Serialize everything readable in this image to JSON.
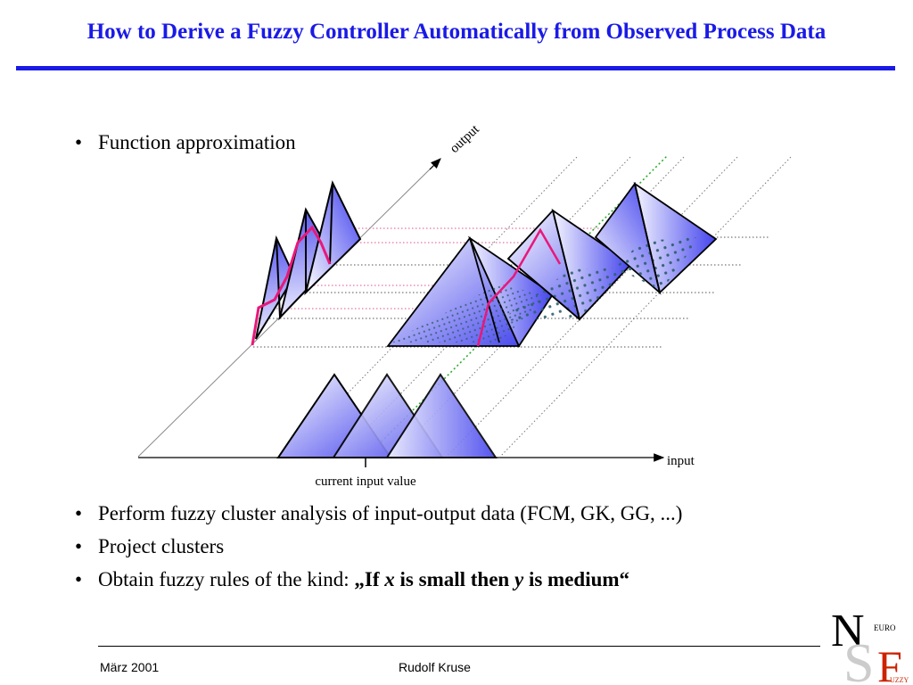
{
  "slide": {
    "title": "How to Derive a Fuzzy Controller Automatically from Observed Process Data"
  },
  "bullets": {
    "first": "Function approximation",
    "items": [
      "Perform fuzzy cluster analysis of input-output data (FCM, GK, GG, ...)",
      "Project clusters"
    ],
    "rule_prefix": "Obtain fuzzy rules of the kind: ",
    "rule_open": "„If ",
    "rule_x": "x",
    "rule_mid": " is small then ",
    "rule_y": "y",
    "rule_end": " is medium“",
    "marker": "•"
  },
  "diagram": {
    "output_axis_label": "output",
    "input_axis_label": "input",
    "current_input_label": "current input value"
  },
  "footer": {
    "date": "März 2001",
    "author": "Rudolf Kruse"
  },
  "logo": {
    "letters_large": [
      "N",
      "S",
      "F"
    ],
    "euro": "EURO",
    "uzzy": "UZZY"
  },
  "colors": {
    "title": "#1a1ae6",
    "pyramid_fill": "#6666ee",
    "pink_curve": "#e8187a",
    "pink_dotted": "#e0508f",
    "green_dotted": "#22aa22",
    "dots": "#2f5f6f"
  }
}
